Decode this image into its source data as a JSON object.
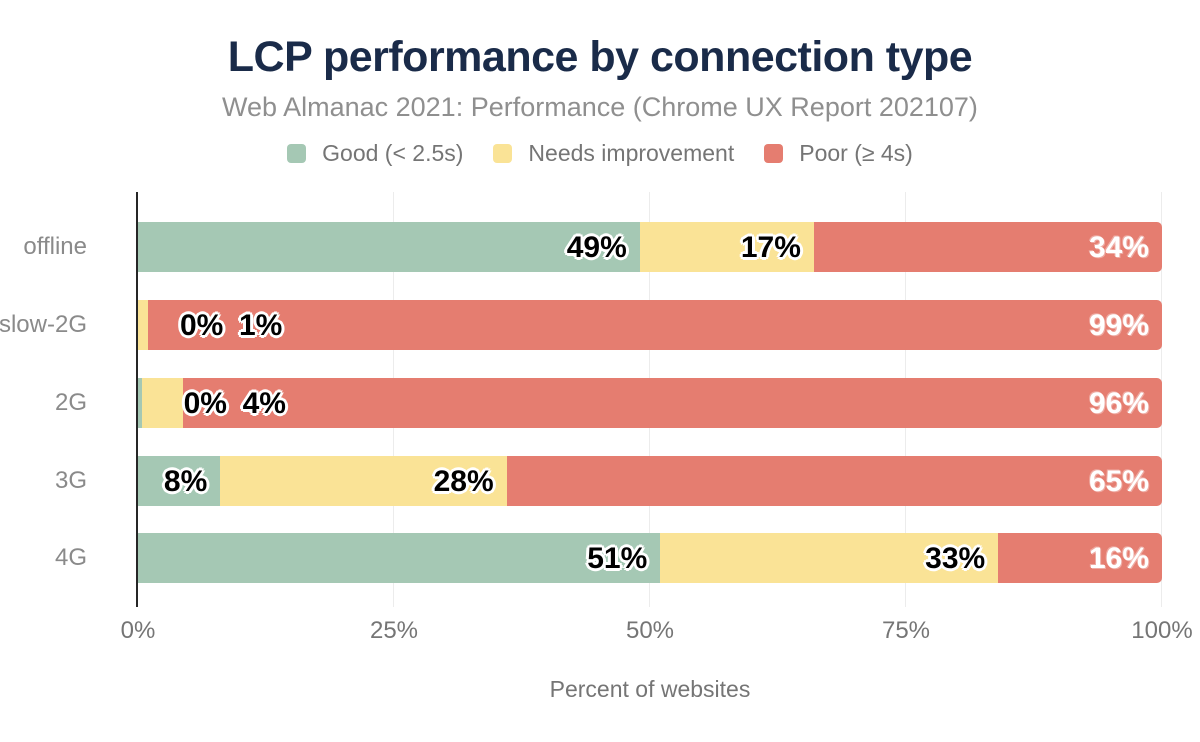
{
  "title": "LCP performance by connection type",
  "subtitle": "Web Almanac 2021: Performance (Chrome UX Report 202107)",
  "colors": {
    "title_text": "#1a2b49",
    "subtitle_text": "#8f8f8f",
    "legend_text": "#757575",
    "axis_text": "#757575",
    "category_text": "#8a8a8a",
    "axis_line": "#262626",
    "gridline": "#ececec",
    "background": "#ffffff",
    "good": "#a5c8b4",
    "needs_improvement": "#fae396",
    "poor": "#e57d70"
  },
  "chart_data": {
    "type": "bar",
    "orientation": "horizontal",
    "stacked": true,
    "title": "LCP performance by connection type",
    "subtitle": "Web Almanac 2021: Performance (Chrome UX Report 202107)",
    "categories": [
      "offline",
      "slow-2G",
      "2G",
      "3G",
      "4G"
    ],
    "series": [
      {
        "name": "Good (< 2.5s)",
        "key": "good",
        "color": "#a5c8b4",
        "label_style": "dark",
        "values": [
          49,
          0,
          0,
          8,
          51
        ],
        "render_widths": [
          49,
          0,
          0.35,
          8,
          51
        ]
      },
      {
        "name": "Needs improvement",
        "key": "needs_improvement",
        "color": "#fae396",
        "label_style": "dark",
        "values": [
          17,
          1,
          4,
          28,
          33
        ],
        "render_widths": [
          17,
          1,
          4,
          28,
          33
        ]
      },
      {
        "name": "Poor (≥ 4s)",
        "key": "poor",
        "color": "#e57d70",
        "label_style": "light",
        "values": [
          34,
          99,
          96,
          65,
          16
        ],
        "render_widths": [
          34,
          99,
          95.65,
          64,
          16
        ]
      }
    ],
    "value_suffix": "%",
    "xlabel": "Percent of websites",
    "ylabel": "",
    "x_ticks": [
      0,
      25,
      50,
      75,
      100
    ],
    "x_tick_labels": [
      "0%",
      "25%",
      "50%",
      "75%",
      "100%"
    ],
    "xlim": [
      0,
      100
    ],
    "legend_position": "top",
    "grid": "vertical-only"
  }
}
